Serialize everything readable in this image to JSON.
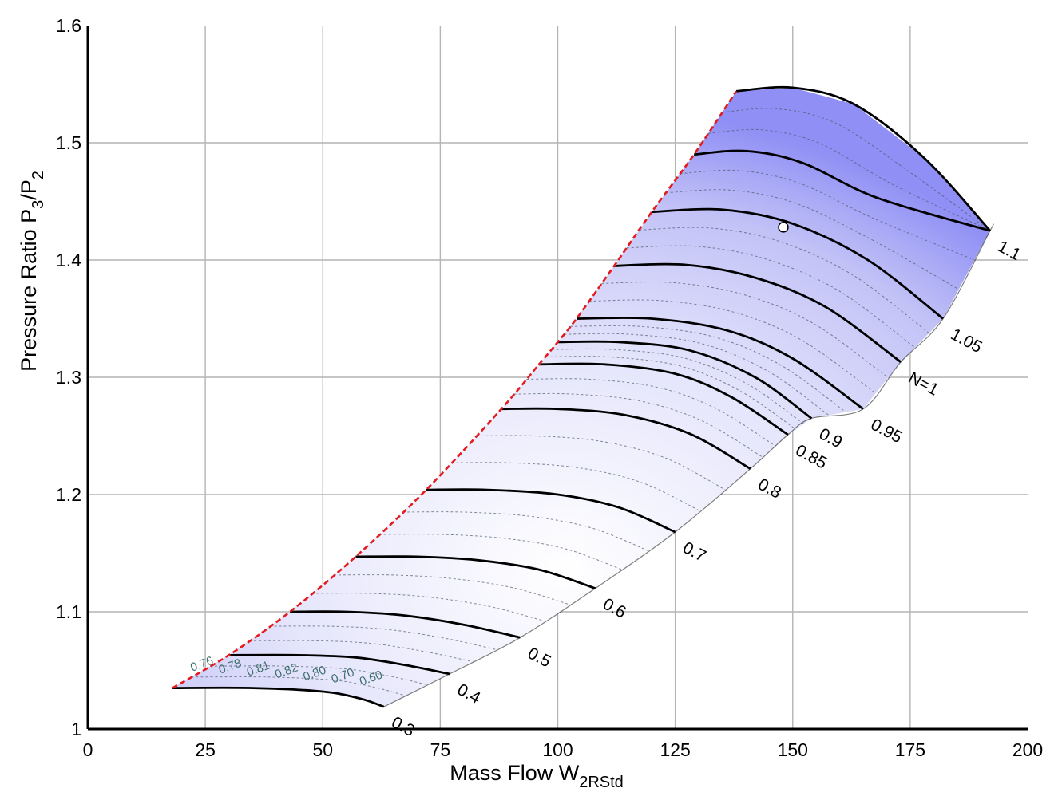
{
  "chart_data": {
    "type": "line",
    "title": "",
    "xlabel": {
      "main": "Mass Flow W",
      "sub": "2RStd"
    },
    "ylabel": {
      "main": "Pressure Ratio P",
      "sub1": "3",
      "mid": "/P",
      "sub2": "2"
    },
    "xlim": [
      0,
      200
    ],
    "ylim": [
      1.0,
      1.6
    ],
    "xticks": [
      0,
      25,
      50,
      75,
      100,
      125,
      150,
      175,
      200
    ],
    "xtick_labels": [
      "0",
      "25",
      "50",
      "75",
      "100",
      "125",
      "150",
      "175",
      "200"
    ],
    "yticks": [
      1.0,
      1.1,
      1.2,
      1.3,
      1.4,
      1.5,
      1.6
    ],
    "ytick_labels": [
      "1",
      "1.1",
      "1.2",
      "1.3",
      "1.4",
      "1.5",
      "1.6"
    ],
    "grid": true,
    "colors": {
      "speed_line": "#000000",
      "surge_line": "#e41a1c",
      "efficiency_contour": "#4a5a6a",
      "map_fill": "#8f8ff5",
      "map_highlight": "#ffffff",
      "grid": "#b4b4b4",
      "design_point": "#ffffff"
    },
    "speed_lines": [
      {
        "label": "0.3",
        "points": [
          [
            18,
            1.035
          ],
          [
            35,
            1.035
          ],
          [
            50,
            1.032
          ],
          [
            58,
            1.026
          ],
          [
            63,
            1.019
          ]
        ]
      },
      {
        "label": "0.4",
        "points": [
          [
            30,
            1.063
          ],
          [
            45,
            1.063
          ],
          [
            57,
            1.061
          ],
          [
            67,
            1.055
          ],
          [
            77,
            1.047
          ]
        ]
      },
      {
        "label": "0.5",
        "points": [
          [
            43,
            1.1
          ],
          [
            55,
            1.1
          ],
          [
            67,
            1.097
          ],
          [
            80,
            1.089
          ],
          [
            92,
            1.078
          ]
        ]
      },
      {
        "label": "0.6",
        "points": [
          [
            57,
            1.147
          ],
          [
            70,
            1.147
          ],
          [
            83,
            1.144
          ],
          [
            96,
            1.136
          ],
          [
            108,
            1.12
          ]
        ]
      },
      {
        "label": "0.7",
        "points": [
          [
            72,
            1.204
          ],
          [
            85,
            1.204
          ],
          [
            100,
            1.2
          ],
          [
            113,
            1.189
          ],
          [
            125,
            1.168
          ]
        ]
      },
      {
        "label": "0.8",
        "points": [
          [
            88,
            1.273
          ],
          [
            100,
            1.273
          ],
          [
            114,
            1.268
          ],
          [
            128,
            1.252
          ],
          [
            141,
            1.222
          ]
        ]
      },
      {
        "label": "0.85",
        "points": [
          [
            96,
            1.311
          ],
          [
            110,
            1.311
          ],
          [
            125,
            1.303
          ],
          [
            137,
            1.283
          ],
          [
            149,
            1.251
          ]
        ]
      },
      {
        "label": "0.9",
        "points": [
          [
            100,
            1.33
          ],
          [
            113,
            1.33
          ],
          [
            128,
            1.323
          ],
          [
            142,
            1.3
          ],
          [
            154,
            1.265
          ]
        ]
      },
      {
        "label": "0.95",
        "points": [
          [
            104,
            1.35
          ],
          [
            120,
            1.35
          ],
          [
            136,
            1.34
          ],
          [
            150,
            1.316
          ],
          [
            165,
            1.273
          ]
        ]
      },
      {
        "label": "N=1",
        "points": [
          [
            112,
            1.395
          ],
          [
            127,
            1.396
          ],
          [
            142,
            1.385
          ],
          [
            157,
            1.36
          ],
          [
            173,
            1.313
          ]
        ]
      },
      {
        "label": "1.05",
        "points": [
          [
            120,
            1.441
          ],
          [
            135,
            1.443
          ],
          [
            150,
            1.431
          ],
          [
            166,
            1.4
          ],
          [
            182,
            1.35
          ]
        ]
      },
      {
        "label": "1.1",
        "points": [
          [
            129,
            1.49
          ],
          [
            140,
            1.493
          ],
          [
            152,
            1.483
          ],
          [
            168,
            1.453
          ],
          [
            192,
            1.425
          ]
        ]
      },
      {
        "label": "",
        "points": [
          [
            138,
            1.544
          ],
          [
            150,
            1.547
          ],
          [
            163,
            1.533
          ],
          [
            178,
            1.487
          ],
          [
            192,
            1.425
          ]
        ]
      }
    ],
    "surge_line": [
      [
        18,
        1.035
      ],
      [
        30,
        1.063
      ],
      [
        43,
        1.1
      ],
      [
        57,
        1.147
      ],
      [
        72,
        1.204
      ],
      [
        88,
        1.273
      ],
      [
        96,
        1.311
      ],
      [
        100,
        1.33
      ],
      [
        104,
        1.35
      ],
      [
        112,
        1.395
      ],
      [
        120,
        1.441
      ],
      [
        129,
        1.49
      ],
      [
        138,
        1.544
      ]
    ],
    "efficiency_labels": [
      "0.76",
      "0.78",
      "0.81",
      "0.82",
      "0.80",
      "0.70",
      "0.60"
    ],
    "design_point": {
      "x": 148,
      "y": 1.428
    }
  }
}
